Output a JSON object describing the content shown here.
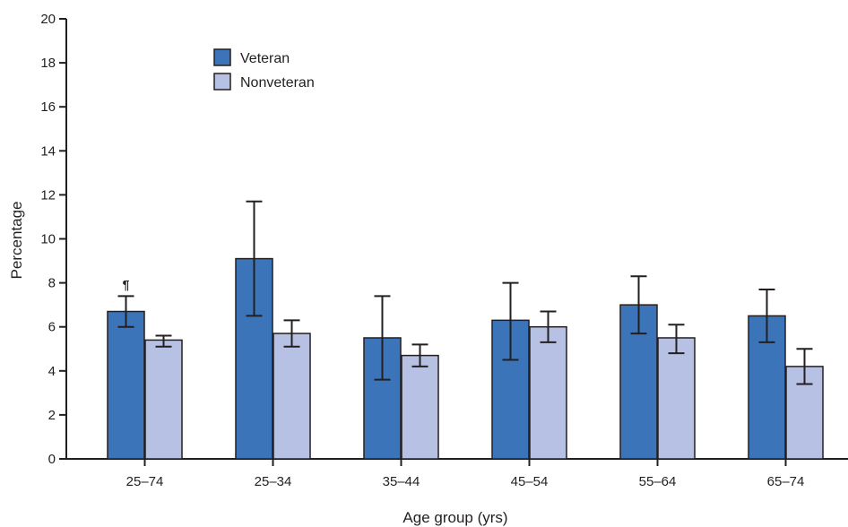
{
  "chart_data": {
    "type": "bar",
    "xlabel": "Age group (yrs)",
    "ylabel": "Percentage",
    "ylim": [
      0,
      20
    ],
    "yticks": [
      0,
      2,
      4,
      6,
      8,
      10,
      12,
      14,
      16,
      18,
      20
    ],
    "categories": [
      "25–74",
      "25–34",
      "35–44",
      "45–54",
      "55–64",
      "65–74"
    ],
    "series": [
      {
        "name": "Veteran",
        "color": "#3c74b9",
        "values": [
          6.7,
          9.1,
          5.5,
          6.3,
          7.0,
          6.5
        ],
        "ci_low": [
          6.0,
          6.5,
          3.6,
          4.5,
          5.7,
          5.3
        ],
        "ci_high": [
          7.4,
          11.7,
          7.4,
          8.0,
          8.3,
          7.7
        ]
      },
      {
        "name": "Nonveteran",
        "color": "#b7c1e3",
        "values": [
          5.4,
          5.7,
          4.7,
          6.0,
          5.5,
          4.2
        ],
        "ci_low": [
          5.1,
          5.1,
          4.2,
          5.3,
          4.8,
          3.4
        ],
        "ci_high": [
          5.6,
          6.3,
          5.2,
          6.7,
          6.1,
          5.0
        ]
      }
    ],
    "legend_position": "top-left",
    "grid": false,
    "annotations": [
      {
        "text": "¶",
        "category_index": 0,
        "series_index": 0
      }
    ]
  }
}
